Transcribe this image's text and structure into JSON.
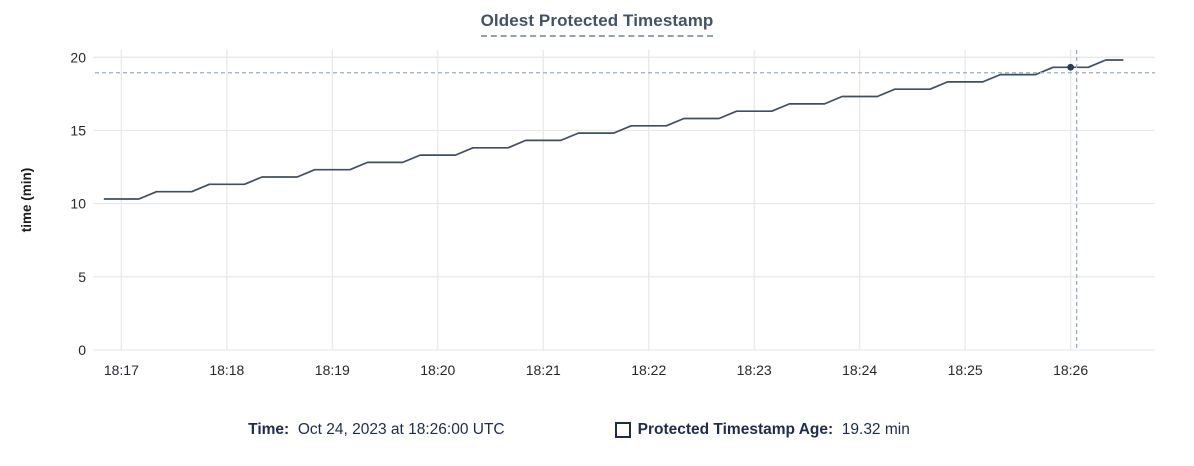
{
  "title": "Oldest Protected Timestamp",
  "colors": {
    "title": "#41536c",
    "title_underline": "#8ea3b8",
    "line": "#3f4e66",
    "marker": "#2d3d59",
    "crosshair": "#9bafc1",
    "grid": "#e9e9e9",
    "tick_text": "#25292e",
    "axis_label_text": "#1b1b1b",
    "legend_text": "#1d2c4e"
  },
  "chart_data": {
    "type": "line",
    "title": "Oldest Protected Timestamp",
    "xlabel": "",
    "ylabel": "time (min)",
    "grid": true,
    "ylim": [
      0,
      20.5
    ],
    "y_ticks": [
      0,
      5,
      10,
      15,
      20
    ],
    "x_ticks": [
      "18:17",
      "18:18",
      "18:19",
      "18:20",
      "18:21",
      "18:22",
      "18:23",
      "18:24",
      "18:25",
      "18:26"
    ],
    "x_domain": [
      "18:16:45",
      "18:26:48"
    ],
    "hover": {
      "time": "18:26:00",
      "value": 19.32
    },
    "series": [
      {
        "name": "Protected Timestamp Age",
        "unit": "min",
        "points": [
          [
            "18:16:50",
            10.32
          ],
          [
            "18:17:00",
            10.32
          ],
          [
            "18:17:10",
            10.32
          ],
          [
            "18:17:20",
            10.82
          ],
          [
            "18:17:30",
            10.82
          ],
          [
            "18:17:40",
            10.82
          ],
          [
            "18:17:50",
            11.32
          ],
          [
            "18:18:00",
            11.32
          ],
          [
            "18:18:10",
            11.32
          ],
          [
            "18:18:20",
            11.82
          ],
          [
            "18:18:30",
            11.82
          ],
          [
            "18:18:40",
            11.82
          ],
          [
            "18:18:50",
            12.32
          ],
          [
            "18:19:00",
            12.32
          ],
          [
            "18:19:10",
            12.32
          ],
          [
            "18:19:20",
            12.82
          ],
          [
            "18:19:30",
            12.82
          ],
          [
            "18:19:40",
            12.82
          ],
          [
            "18:19:50",
            13.32
          ],
          [
            "18:20:00",
            13.32
          ],
          [
            "18:20:10",
            13.32
          ],
          [
            "18:20:20",
            13.82
          ],
          [
            "18:20:30",
            13.82
          ],
          [
            "18:20:40",
            13.82
          ],
          [
            "18:20:50",
            14.32
          ],
          [
            "18:21:00",
            14.32
          ],
          [
            "18:21:10",
            14.32
          ],
          [
            "18:21:20",
            14.82
          ],
          [
            "18:21:30",
            14.82
          ],
          [
            "18:21:40",
            14.82
          ],
          [
            "18:21:50",
            15.32
          ],
          [
            "18:22:00",
            15.32
          ],
          [
            "18:22:10",
            15.32
          ],
          [
            "18:22:20",
            15.82
          ],
          [
            "18:22:30",
            15.82
          ],
          [
            "18:22:40",
            15.82
          ],
          [
            "18:22:50",
            16.32
          ],
          [
            "18:23:00",
            16.32
          ],
          [
            "18:23:10",
            16.32
          ],
          [
            "18:23:20",
            16.82
          ],
          [
            "18:23:30",
            16.82
          ],
          [
            "18:23:40",
            16.82
          ],
          [
            "18:23:50",
            17.32
          ],
          [
            "18:24:00",
            17.32
          ],
          [
            "18:24:10",
            17.32
          ],
          [
            "18:24:20",
            17.82
          ],
          [
            "18:24:30",
            17.82
          ],
          [
            "18:24:40",
            17.82
          ],
          [
            "18:24:50",
            18.32
          ],
          [
            "18:25:00",
            18.32
          ],
          [
            "18:25:10",
            18.32
          ],
          [
            "18:25:20",
            18.82
          ],
          [
            "18:25:30",
            18.82
          ],
          [
            "18:25:40",
            18.82
          ],
          [
            "18:25:50",
            19.32
          ],
          [
            "18:26:00",
            19.32
          ],
          [
            "18:26:10",
            19.32
          ],
          [
            "18:26:20",
            19.82
          ],
          [
            "18:26:30",
            19.82
          ]
        ]
      }
    ]
  },
  "legend": {
    "time_label": "Time:",
    "time_value": "  Oct 24, 2023 at 18:26:00 UTC",
    "series_label": "Protected Timestamp Age:",
    "series_value": "  19.32 min"
  }
}
